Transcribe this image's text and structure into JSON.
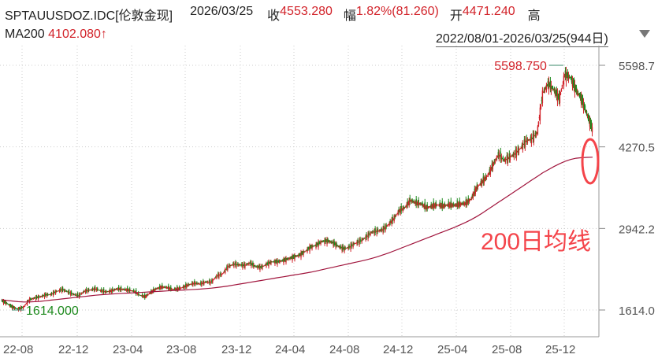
{
  "header": {
    "symbol": "SPTAUUSDOZ.IDC[伦敦金现]",
    "date": "2026/03/25",
    "close_label": "收",
    "close_value": "4553.280",
    "change_label": "幅",
    "change_value": "1.82%(81.260)",
    "open_label": "开",
    "open_value": "4471.240",
    "high_label": "高",
    "ma_label": "MA200",
    "ma_value": "4102.080↑",
    "range_text": "2022/08/01-2026/03/25(944日)"
  },
  "annotation": "200日均线",
  "colors": {
    "up": "#d2232a",
    "down": "#1e8a1e",
    "ma": "#a0143c",
    "highlight": "#f4444a",
    "grid": "#cccccc"
  },
  "chart_data": {
    "type": "line",
    "y_axis_ticks": [
      "5598.7",
      "4270.5",
      "2942.2",
      "1614.0"
    ],
    "y_tick_values": [
      5598.7,
      4270.5,
      2942.2,
      1614.0
    ],
    "x_axis_ticks": [
      "22-08",
      "22-12",
      "23-04",
      "23-08",
      "23-12",
      "24-04",
      "24-08",
      "24-12",
      "25-04",
      "25-08",
      "25-12"
    ],
    "ylim": [
      1614.0,
      5598.7
    ],
    "max_label": "5598.750",
    "min_label": "1614.000",
    "series": [
      {
        "values": [
          1770,
          1720,
          1660,
          1630,
          1660,
          1780,
          1810,
          1830,
          1860,
          1870,
          1920,
          1950,
          1910,
          1870,
          1850,
          1920,
          1940,
          1960,
          1930,
          1910,
          1930,
          1960,
          1950,
          1940,
          1920,
          1860,
          1830,
          1900,
          1960,
          1990,
          1980,
          1950,
          1960,
          1990,
          2030,
          2050,
          2040,
          2070,
          2070,
          2170,
          2200,
          2320,
          2360,
          2350,
          2340,
          2380,
          2320,
          2310,
          2360,
          2400,
          2400,
          2420,
          2450,
          2480,
          2510,
          2570,
          2640,
          2670,
          2730,
          2740,
          2710,
          2650,
          2610,
          2640,
          2700,
          2740,
          2800,
          2880,
          2900,
          2920,
          3000,
          3100,
          3230,
          3280,
          3400,
          3360,
          3340,
          3280,
          3310,
          3330,
          3310,
          3330,
          3320,
          3340,
          3350,
          3420,
          3600,
          3700,
          3800,
          3980,
          4150,
          4050,
          4100,
          4160,
          4250,
          4370,
          4400,
          4500,
          5150,
          5300,
          5200,
          5050,
          5450,
          5400,
          5200,
          5050,
          4800,
          4553
        ]
      },
      {
        "values": [
          1780,
          1770,
          1760,
          1750,
          1745,
          1745,
          1750,
          1755,
          1765,
          1775,
          1785,
          1795,
          1805,
          1815,
          1825,
          1835,
          1845,
          1855,
          1862,
          1868,
          1874,
          1880,
          1885,
          1890,
          1895,
          1900,
          1905,
          1910,
          1915,
          1920,
          1925,
          1930,
          1935,
          1940,
          1945,
          1950,
          1955,
          1962,
          1970,
          1980,
          1992,
          2005,
          2020,
          2035,
          2050,
          2065,
          2080,
          2095,
          2110,
          2125,
          2140,
          2155,
          2170,
          2185,
          2200,
          2215,
          2230,
          2250,
          2270,
          2290,
          2310,
          2330,
          2350,
          2370,
          2390,
          2410,
          2430,
          2455,
          2480,
          2510,
          2540,
          2575,
          2610,
          2645,
          2680,
          2715,
          2750,
          2785,
          2820,
          2855,
          2890,
          2925,
          2960,
          3000,
          3040,
          3085,
          3135,
          3190,
          3250,
          3310,
          3370,
          3430,
          3490,
          3550,
          3610,
          3670,
          3730,
          3790,
          3850,
          3900,
          3950,
          3995,
          4035,
          4065,
          4085,
          4095,
          4100,
          4102
        ]
      }
    ]
  }
}
